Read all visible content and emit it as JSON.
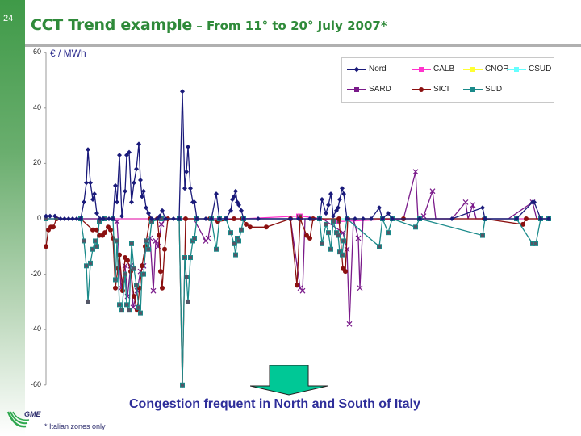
{
  "slide": {
    "number": "24",
    "title_main": "CCT Trend example",
    "title_sub": " – From 11° to 20°  July 2007*",
    "unit_label": "€ / MWh",
    "conclusion": "Congestion frequent in North and South of Italy",
    "footnote": "* Italian zones only",
    "logo_text": "GME"
  },
  "colors": {
    "title": "#2f8a3a",
    "conclusion": "#2e2e9a",
    "arrow_fill": "#00c896",
    "rule": "#b0b0b0"
  },
  "chart_data": {
    "type": "line",
    "title": "CCT Trend example – From 11° to 20° July 2007",
    "xlabel": "",
    "ylabel": "€ / MWh",
    "ylim": [
      -60,
      60
    ],
    "yticks": [
      60,
      40,
      20,
      0,
      -20,
      -40,
      -60
    ],
    "ytick_labels": [
      "60",
      "40",
      "20",
      "0",
      "-20",
      "-40",
      "-60"
    ],
    "grid": false,
    "legend_position": "top-right",
    "legend": [
      "Nord",
      "CALB",
      "CNOR",
      "CSUD",
      "SARD",
      "SICI",
      "SUD"
    ],
    "x_note": "hourly points across 11–20 July 2007 (no x tick labels shown)",
    "series": [
      {
        "name": "Nord",
        "color": "#1a1a7a",
        "marker": "diamond",
        "points": [
          [
            57,
            1
          ],
          [
            62,
            1
          ],
          [
            68,
            1
          ],
          [
            75,
            0
          ],
          [
            80,
            0
          ],
          [
            85,
            0
          ],
          [
            90,
            0
          ],
          [
            95,
            0
          ],
          [
            100,
            0
          ],
          [
            104,
            6
          ],
          [
            107,
            13
          ],
          [
            109,
            25
          ],
          [
            112,
            13
          ],
          [
            115,
            7
          ],
          [
            117,
            9
          ],
          [
            120,
            2
          ],
          [
            124,
            0
          ],
          [
            128,
            0
          ],
          [
            135,
            0
          ],
          [
            140,
            0
          ],
          [
            143,
            12
          ],
          [
            145,
            6
          ],
          [
            148,
            23
          ],
          [
            151,
            1
          ],
          [
            155,
            10
          ],
          [
            157,
            23
          ],
          [
            160,
            24
          ],
          [
            163,
            6
          ],
          [
            166,
            13
          ],
          [
            169,
            18
          ],
          [
            172,
            27
          ],
          [
            174,
            14
          ],
          [
            176,
            8
          ],
          [
            178,
            10
          ],
          [
            181,
            4
          ],
          [
            184,
            2
          ],
          [
            188,
            0
          ],
          [
            195,
            0
          ],
          [
            198,
            1
          ],
          [
            201,
            3
          ],
          [
            205,
            0
          ],
          [
            215,
            0
          ],
          [
            222,
            0
          ],
          [
            226,
            46
          ],
          [
            229,
            11
          ],
          [
            231,
            17
          ],
          [
            233,
            26
          ],
          [
            236,
            11
          ],
          [
            239,
            6
          ],
          [
            241,
            6
          ],
          [
            244,
            0
          ],
          [
            255,
            0
          ],
          [
            262,
            0
          ],
          [
            268,
            9
          ],
          [
            272,
            0
          ],
          [
            280,
            0
          ],
          [
            286,
            3
          ],
          [
            288,
            7
          ],
          [
            290,
            8
          ],
          [
            292,
            10
          ],
          [
            294,
            6
          ],
          [
            296,
            5
          ],
          [
            299,
            3
          ],
          [
            302,
            0
          ],
          [
            320,
            0
          ],
          [
            360,
            0
          ],
          [
            370,
            0
          ],
          [
            384,
            0
          ],
          [
            396,
            0
          ],
          [
            399,
            7
          ],
          [
            404,
            2
          ],
          [
            407,
            5
          ],
          [
            410,
            9
          ],
          [
            413,
            1
          ],
          [
            417,
            3
          ],
          [
            419,
            4
          ],
          [
            421,
            7
          ],
          [
            424,
            11
          ],
          [
            426,
            9
          ],
          [
            430,
            0
          ],
          [
            440,
            0
          ],
          [
            450,
            0
          ],
          [
            460,
            0
          ],
          [
            470,
            4
          ],
          [
            474,
            0
          ],
          [
            481,
            2
          ],
          [
            486,
            0
          ],
          [
            520,
            0
          ],
          [
            560,
            0
          ],
          [
            598,
            4
          ],
          [
            601,
            0
          ],
          [
            640,
            0
          ],
          [
            660,
            6
          ],
          [
            662,
            6
          ],
          [
            670,
            0
          ],
          [
            680,
            0
          ]
        ]
      },
      {
        "name": "CALB",
        "color": "#ff33cc",
        "marker": "square",
        "points": [
          [
            57,
            0
          ],
          [
            100,
            0
          ],
          [
            200,
            0
          ],
          [
            300,
            0
          ],
          [
            370,
            1
          ],
          [
            372,
            1
          ],
          [
            400,
            0
          ],
          [
            420,
            -1
          ],
          [
            500,
            0
          ],
          [
            600,
            0
          ],
          [
            680,
            0
          ]
        ]
      },
      {
        "name": "CNOR",
        "color": "#ffff33",
        "marker": "triangle",
        "points": [
          [
            57,
            0
          ],
          [
            200,
            0
          ],
          [
            400,
            0
          ],
          [
            600,
            0
          ],
          [
            680,
            0
          ]
        ]
      },
      {
        "name": "CSUD",
        "color": "#66ffff",
        "marker": "x",
        "points": [
          [
            57,
            0
          ],
          [
            200,
            0
          ],
          [
            400,
            0
          ],
          [
            600,
            0
          ],
          [
            680,
            0
          ]
        ]
      },
      {
        "name": "SARD",
        "color": "#7a1a8a",
        "marker": "star",
        "points": [
          [
            57,
            0
          ],
          [
            100,
            0
          ],
          [
            140,
            0
          ],
          [
            145,
            -1
          ],
          [
            150,
            -25
          ],
          [
            155,
            -17
          ],
          [
            158,
            -28
          ],
          [
            162,
            -17
          ],
          [
            165,
            -32
          ],
          [
            170,
            -26
          ],
          [
            174,
            -19
          ],
          [
            178,
            -17
          ],
          [
            182,
            -8
          ],
          [
            186,
            -7
          ],
          [
            190,
            -26
          ],
          [
            193,
            -8
          ],
          [
            196,
            -10
          ],
          [
            200,
            -2
          ],
          [
            205,
            0
          ],
          [
            240,
            0
          ],
          [
            255,
            -8
          ],
          [
            258,
            -7
          ],
          [
            262,
            0
          ],
          [
            300,
            0
          ],
          [
            360,
            0
          ],
          [
            372,
            -25
          ],
          [
            375,
            -26
          ],
          [
            378,
            0
          ],
          [
            400,
            0
          ],
          [
            425,
            -5
          ],
          [
            430,
            -11
          ],
          [
            433,
            -38
          ],
          [
            438,
            0
          ],
          [
            444,
            -7
          ],
          [
            446,
            -25
          ],
          [
            450,
            0
          ],
          [
            500,
            0
          ],
          [
            515,
            17
          ],
          [
            518,
            0
          ],
          [
            525,
            1
          ],
          [
            536,
            10
          ],
          [
            540,
            0
          ],
          [
            560,
            0
          ],
          [
            577,
            6
          ],
          [
            580,
            0
          ],
          [
            586,
            5
          ],
          [
            590,
            0
          ],
          [
            630,
            0
          ],
          [
            660,
            6
          ],
          [
            665,
            0
          ],
          [
            680,
            0
          ]
        ]
      },
      {
        "name": "SICI",
        "color": "#8b1010",
        "marker": "circle",
        "points": [
          [
            57,
            -10
          ],
          [
            60,
            -4
          ],
          [
            63,
            -3
          ],
          [
            66,
            -3
          ],
          [
            70,
            0
          ],
          [
            100,
            0
          ],
          [
            115,
            -4
          ],
          [
            120,
            -4
          ],
          [
            123,
            -6
          ],
          [
            127,
            -6
          ],
          [
            130,
            -5
          ],
          [
            134,
            -3
          ],
          [
            137,
            -4
          ],
          [
            140,
            -7
          ],
          [
            143,
            -25
          ],
          [
            146,
            -18
          ],
          [
            148,
            -13
          ],
          [
            152,
            -26
          ],
          [
            155,
            -14
          ],
          [
            158,
            -15
          ],
          [
            162,
            -19
          ],
          [
            166,
            -28
          ],
          [
            170,
            -33
          ],
          [
            173,
            -25
          ],
          [
            176,
            -17
          ],
          [
            180,
            -10
          ],
          [
            186,
            0
          ],
          [
            195,
            0
          ],
          [
            197,
            -6
          ],
          [
            199,
            -19
          ],
          [
            201,
            -25
          ],
          [
            204,
            -11
          ],
          [
            208,
            0
          ],
          [
            222,
            0
          ],
          [
            226,
            -60
          ],
          [
            230,
            0
          ],
          [
            260,
            0
          ],
          [
            270,
            -1
          ],
          [
            290,
            0
          ],
          [
            300,
            0
          ],
          [
            305,
            -2
          ],
          [
            310,
            -3
          ],
          [
            330,
            -3
          ],
          [
            360,
            0
          ],
          [
            368,
            -24
          ],
          [
            372,
            0
          ],
          [
            380,
            -6
          ],
          [
            384,
            -7
          ],
          [
            388,
            0
          ],
          [
            420,
            0
          ],
          [
            425,
            -18
          ],
          [
            428,
            -19
          ],
          [
            431,
            0
          ],
          [
            500,
            0
          ],
          [
            600,
            0
          ],
          [
            648,
            -2
          ],
          [
            652,
            0
          ],
          [
            680,
            0
          ]
        ]
      },
      {
        "name": "SUD",
        "color": "#1a8a8a",
        "marker": "plus",
        "points": [
          [
            57,
            0
          ],
          [
            100,
            0
          ],
          [
            104,
            -8
          ],
          [
            107,
            -17
          ],
          [
            109,
            -30
          ],
          [
            112,
            -16
          ],
          [
            115,
            -11
          ],
          [
            118,
            -8
          ],
          [
            120,
            -10
          ],
          [
            123,
            -1
          ],
          [
            130,
            0
          ],
          [
            140,
            0
          ],
          [
            143,
            -22
          ],
          [
            145,
            -8
          ],
          [
            148,
            -31
          ],
          [
            151,
            -33
          ],
          [
            155,
            -20
          ],
          [
            157,
            -31
          ],
          [
            160,
            -33
          ],
          [
            163,
            -9
          ],
          [
            166,
            -18
          ],
          [
            169,
            -24
          ],
          [
            172,
            -32
          ],
          [
            174,
            -34
          ],
          [
            176,
            -20
          ],
          [
            178,
            -20
          ],
          [
            181,
            -8
          ],
          [
            184,
            -11
          ],
          [
            188,
            -1
          ],
          [
            200,
            0
          ],
          [
            222,
            0
          ],
          [
            226,
            -60
          ],
          [
            229,
            -14
          ],
          [
            231,
            -21
          ],
          [
            233,
            -30
          ],
          [
            236,
            -14
          ],
          [
            239,
            -8
          ],
          [
            241,
            -7
          ],
          [
            244,
            0
          ],
          [
            262,
            0
          ],
          [
            268,
            -11
          ],
          [
            272,
            0
          ],
          [
            280,
            0
          ],
          [
            286,
            -5
          ],
          [
            290,
            -9
          ],
          [
            292,
            -13
          ],
          [
            294,
            -7
          ],
          [
            296,
            -8
          ],
          [
            299,
            -4
          ],
          [
            302,
            0
          ],
          [
            396,
            0
          ],
          [
            399,
            -9
          ],
          [
            404,
            -2
          ],
          [
            407,
            -5
          ],
          [
            410,
            -11
          ],
          [
            413,
            -1
          ],
          [
            417,
            -5
          ],
          [
            419,
            -6
          ],
          [
            421,
            -12
          ],
          [
            424,
            -13
          ],
          [
            426,
            -8
          ],
          [
            430,
            0
          ],
          [
            470,
            -10
          ],
          [
            474,
            0
          ],
          [
            481,
            -5
          ],
          [
            486,
            0
          ],
          [
            515,
            -3
          ],
          [
            520,
            0
          ],
          [
            598,
            -6
          ],
          [
            601,
            0
          ],
          [
            640,
            0
          ],
          [
            660,
            -9
          ],
          [
            664,
            -9
          ],
          [
            670,
            0
          ],
          [
            680,
            0
          ]
        ]
      }
    ]
  }
}
